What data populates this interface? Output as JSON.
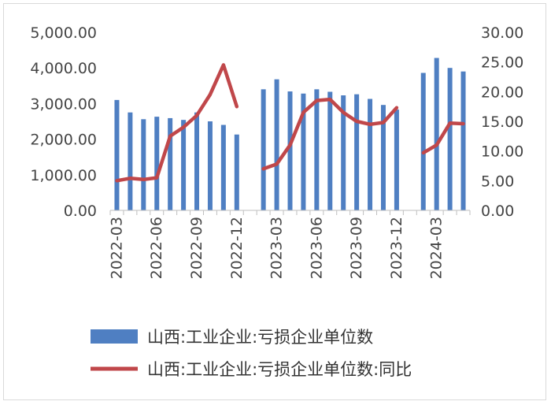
{
  "chart_data": {
    "type": "bar+line",
    "categories": [
      "2022-03",
      "2022-04",
      "2022-05",
      "2022-06",
      "2022-07",
      "2022-08",
      "2022-09",
      "2022-10",
      "2022-11",
      "2022-12",
      "2023-01",
      "2023-02",
      "2023-03",
      "2023-04",
      "2023-05",
      "2023-06",
      "2023-07",
      "2023-08",
      "2023-09",
      "2023-10",
      "2023-11",
      "2023-12",
      "2024-01",
      "2024-02",
      "2024-03",
      "2024-04",
      "2024-05"
    ],
    "x_tick_labels": [
      "2022-03",
      "2022-06",
      "2022-09",
      "2022-12",
      "2023-03",
      "2023-06",
      "2023-09",
      "2023-12",
      "2024-03"
    ],
    "series": [
      {
        "name": "山西:工业企业:亏损企业单位数",
        "type": "bar",
        "axis": "left",
        "color": "#4f7fc2",
        "values": [
          3100,
          2750,
          2560,
          2630,
          2590,
          2540,
          2750,
          2500,
          2400,
          2130,
          null,
          3400,
          3680,
          3340,
          3280,
          3400,
          3330,
          3230,
          3260,
          3130,
          2960,
          2830,
          null,
          3860,
          4280,
          4000,
          3900
        ]
      },
      {
        "name": "山西:工业企业:亏损企业单位数:同比",
        "type": "line",
        "axis": "right",
        "color": "#c0474a",
        "values": [
          5.0,
          5.4,
          5.2,
          5.5,
          12.5,
          14.0,
          16.0,
          19.5,
          24.5,
          17.5,
          null,
          7.0,
          7.8,
          11.0,
          16.5,
          18.5,
          18.7,
          16.5,
          15.0,
          14.5,
          14.8,
          17.3,
          null,
          9.7,
          11.0,
          14.7,
          14.6
        ]
      }
    ],
    "y_left": {
      "ylim": [
        0,
        5000
      ],
      "tick_labels": [
        "0.00",
        "1,000.00",
        "2,000.00",
        "3,000.00",
        "4,000.00",
        "5,000.00"
      ]
    },
    "y_right": {
      "ylim": [
        0,
        30
      ],
      "tick_labels": [
        "0.00",
        "5.00",
        "10.00",
        "15.00",
        "20.00",
        "25.00",
        "30.00"
      ]
    },
    "legend_position": "bottom",
    "grid": false,
    "title": "",
    "xlabel": "",
    "ylabel": ""
  }
}
